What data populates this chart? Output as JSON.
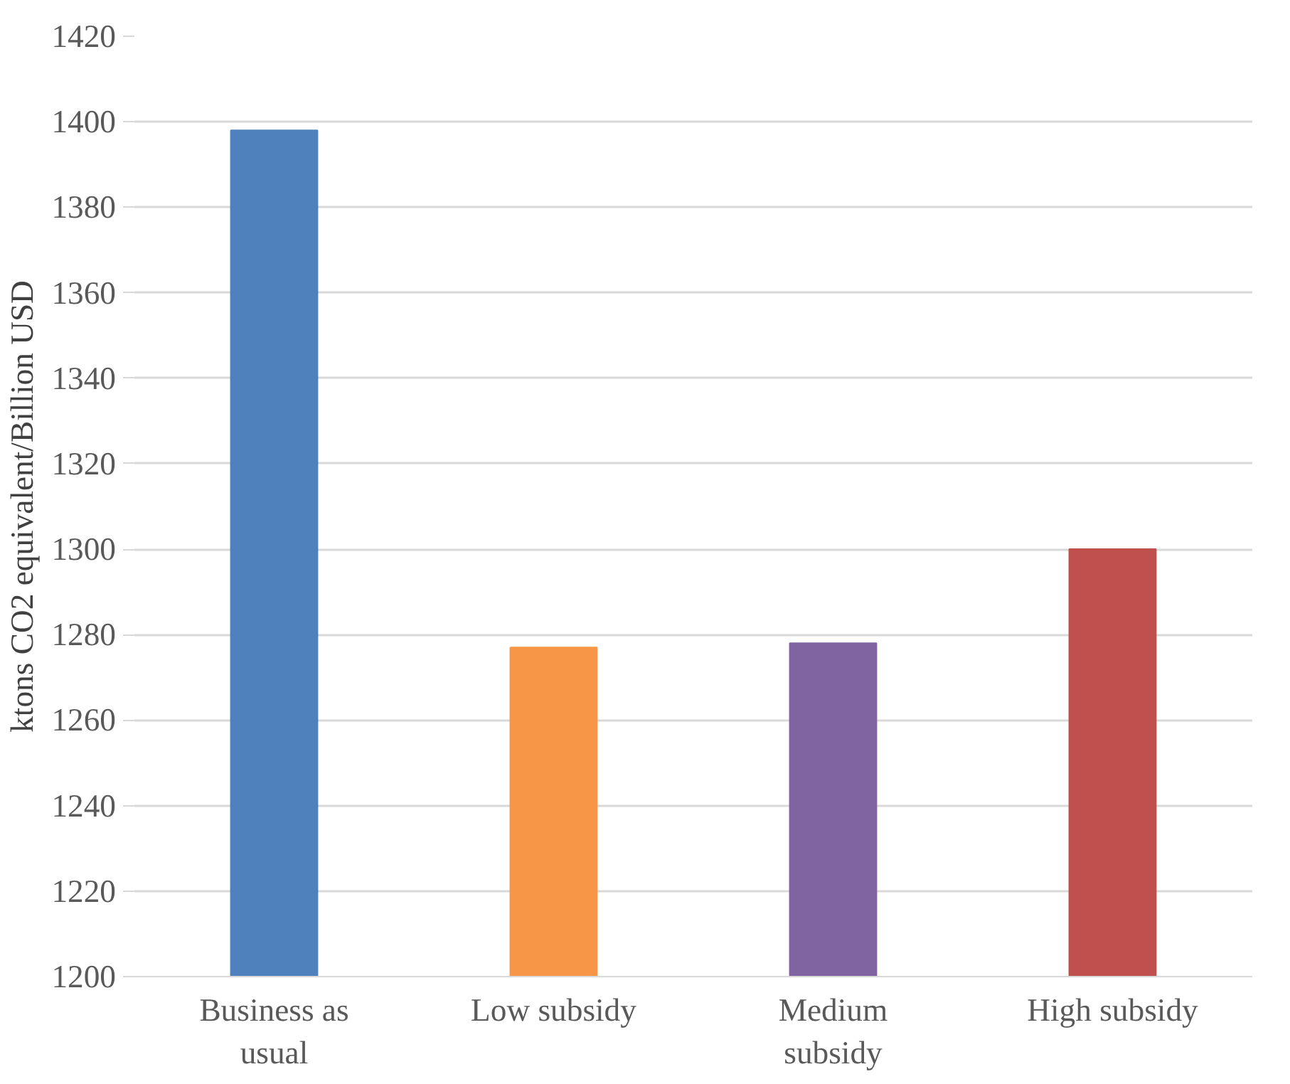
{
  "chart_data": {
    "type": "bar",
    "ylabel": "ktons CO2 equivalent/Billion USD",
    "categories": [
      "Business as usual",
      "Low subsidy",
      "Medium subsidy",
      "High subsidy"
    ],
    "values": [
      1398,
      1277,
      1278,
      1300
    ],
    "colors": [
      "#4f81bd",
      "#f79646",
      "#8064a2",
      "#c0504d"
    ],
    "ylim": [
      1200,
      1420
    ],
    "yticks": [
      1200,
      1220,
      1240,
      1260,
      1280,
      1300,
      1320,
      1340,
      1360,
      1380,
      1400,
      1420
    ],
    "grid": "y"
  }
}
